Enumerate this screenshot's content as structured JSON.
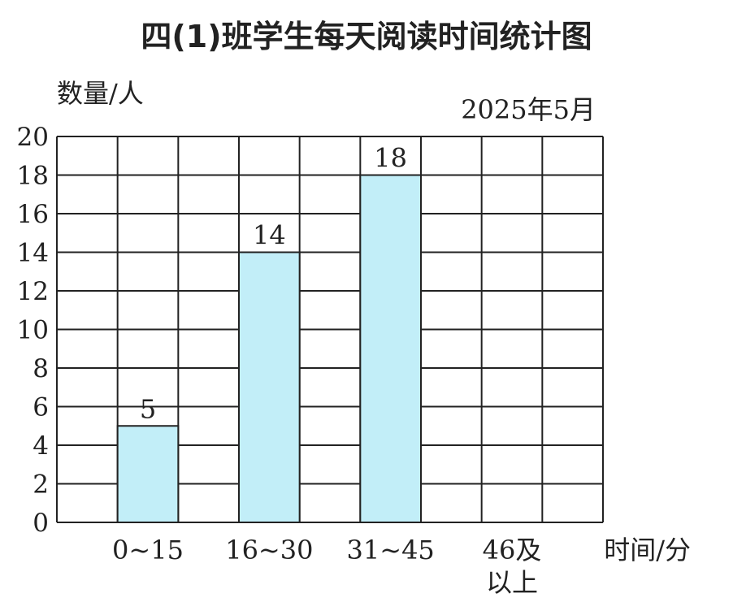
{
  "chart_data": {
    "type": "bar",
    "title": "四(1)班学生每天阅读时间统计图",
    "subtitle": "2025年5月",
    "ylabel": "数量/人",
    "xlabel": "时间/分",
    "categories": [
      "0~15",
      "16~30",
      "31~45",
      "46及以上"
    ],
    "category_lines": [
      [
        "0~15"
      ],
      [
        "16~30"
      ],
      [
        "31~45"
      ],
      [
        "46及",
        "以上"
      ]
    ],
    "values": [
      5,
      14,
      18,
      null
    ],
    "data_labels": [
      "5",
      "14",
      "18",
      ""
    ],
    "ylim": [
      0,
      20
    ],
    "yticks": [
      0,
      2,
      4,
      6,
      8,
      10,
      12,
      14,
      16,
      18,
      20
    ],
    "grid": true,
    "bar_color": "#c2eef8"
  }
}
